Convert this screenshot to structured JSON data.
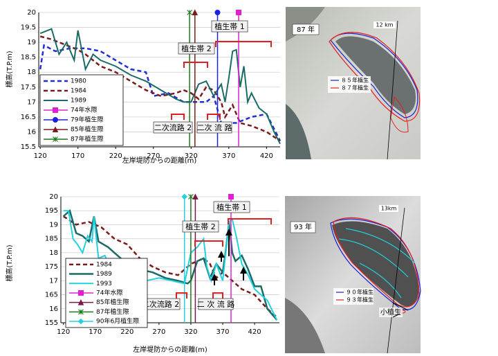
{
  "chart_data": [
    {
      "type": "line",
      "ylabel": "標高(T.P.m)",
      "xlabel": "左岸堤防からの距離(m)",
      "xlim": [
        118,
        438
      ],
      "ylim": [
        15.5,
        20
      ],
      "xticks": [
        120,
        170,
        220,
        270,
        320,
        370,
        420
      ],
      "yticks": [
        15.5,
        16,
        16.5,
        17,
        17.5,
        18,
        18.5,
        19,
        19.5,
        20
      ],
      "series": [
        {
          "name": "1980",
          "color": "#1f2fd6",
          "dash": true,
          "width": 2.5,
          "x": [
            120,
            125,
            140,
            160,
            180,
            200,
            220,
            240,
            260,
            270,
            290,
            310,
            340,
            350,
            360,
            380,
            400,
            420,
            438
          ],
          "values": [
            18.1,
            18.9,
            18.7,
            18.8,
            18.8,
            18.7,
            18.4,
            18.1,
            18.0,
            17.2,
            17.3,
            17.0,
            17.0,
            17.2,
            16.3,
            16.3,
            16.5,
            16.6,
            15.7
          ]
        },
        {
          "name": "1984",
          "color": "#7b1a1a",
          "dash": true,
          "width": 2.5,
          "x": [
            120,
            135,
            145,
            155,
            165,
            170,
            180,
            190,
            200,
            220,
            240,
            260,
            280,
            300,
            310,
            320,
            330,
            340,
            350,
            360,
            365,
            375,
            385,
            400,
            420,
            438
          ],
          "values": [
            19.2,
            19.1,
            19.0,
            18.9,
            18.8,
            18.75,
            18.6,
            18.4,
            18.2,
            18.0,
            17.7,
            17.4,
            17.2,
            17.3,
            17.4,
            17.3,
            17.1,
            17.5,
            17.4,
            17.0,
            16.5,
            16.9,
            16.3,
            16.2,
            16.0,
            15.7
          ]
        },
        {
          "name": "1989",
          "color": "#1a6b66",
          "width": 2,
          "x": [
            120,
            135,
            145,
            155,
            165,
            170,
            180,
            190,
            200,
            220,
            240,
            260,
            280,
            300,
            310,
            320,
            330,
            340,
            350,
            360,
            365,
            370,
            375,
            380,
            385,
            390,
            395,
            400,
            410,
            420,
            430,
            438
          ],
          "values": [
            19.3,
            19.45,
            18.6,
            19.0,
            18.4,
            19.4,
            18.1,
            18.6,
            18.4,
            18.2,
            17.9,
            17.7,
            17.4,
            17.1,
            17.0,
            17.0,
            17.6,
            17.7,
            17.2,
            17.6,
            17.0,
            17.8,
            18.7,
            18.75,
            17.5,
            18.2,
            17.0,
            17.3,
            16.8,
            16.6,
            16.0,
            15.6
          ]
        },
        {
          "name": "74年水際",
          "color": "#e020d0",
          "marker": "square",
          "x": [
            383,
            383
          ],
          "values": [
            15.5,
            20
          ]
        },
        {
          "name": "79年植生際",
          "color": "#1a20e0",
          "marker": "circle",
          "x": [
            355,
            355
          ],
          "values": [
            15.5,
            20
          ]
        },
        {
          "name": "85年植生際",
          "color": "#7b1a1a",
          "marker": "triangle",
          "x": [
            325,
            325
          ],
          "values": [
            15.5,
            20
          ]
        },
        {
          "name": "87年植生際",
          "color": "#1a7a1a",
          "marker": "star",
          "x": [
            318,
            318
          ],
          "values": [
            15.5,
            20
          ]
        }
      ],
      "annotations": [
        "植生帯 1",
        "植生帯 2",
        "二次流路 2",
        "二次 流 路"
      ]
    },
    {
      "type": "line",
      "ylabel": "標高(T.P.m)",
      "xlabel": "左岸堤防からの距離(m)",
      "xlim": [
        116,
        459
      ],
      "ylim": [
        15.5,
        20
      ],
      "xticks": [
        120,
        170,
        220,
        270,
        320,
        370,
        420
      ],
      "yticks": [
        {
          "value": 15.5,
          "label": "155"
        },
        16,
        {
          "value": 16.5,
          "label": "165"
        },
        17,
        {
          "value": 17.5,
          "label": "175"
        },
        18,
        {
          "value": 18.5,
          "label": "185"
        },
        19,
        {
          "value": 19.5,
          "label": "195"
        },
        20
      ],
      "series": [
        {
          "name": "1984",
          "color": "#7b1a1a",
          "dash": true,
          "width": 2.5,
          "x": [
            120,
            140,
            160,
            180,
            200,
            220,
            240,
            260,
            280,
            300,
            320,
            340,
            350,
            360,
            370,
            380,
            400,
            420,
            440,
            455
          ],
          "values": [
            19.3,
            19.0,
            19.1,
            18.9,
            18.5,
            18.3,
            17.8,
            17.5,
            17.3,
            17.2,
            17.6,
            17.8,
            17.6,
            17.1,
            17.3,
            17.1,
            16.7,
            16.5,
            16.0,
            15.7
          ]
        },
        {
          "name": "1989",
          "color": "#1a6b66",
          "width": 2.5,
          "x": [
            120,
            130,
            140,
            150,
            160,
            168,
            175,
            190,
            200,
            220,
            240,
            260,
            280,
            300,
            315,
            320,
            330,
            340,
            350,
            360,
            370,
            375,
            380,
            385,
            390,
            400,
            410,
            420,
            430,
            440,
            455
          ],
          "values": [
            19.3,
            19.5,
            18.7,
            18.6,
            18.4,
            19.3,
            18.4,
            18.2,
            18.0,
            17.6,
            17.4,
            17.3,
            17.1,
            17.0,
            16.9,
            17.0,
            17.7,
            17.8,
            17.1,
            17.6,
            17.3,
            18.1,
            19.1,
            18.0,
            17.7,
            17.9,
            17.4,
            16.8,
            16.8,
            16.0,
            15.6
          ]
        },
        {
          "name": "1993",
          "color": "#22d0e0",
          "width": 2,
          "x": [
            120,
            128,
            135,
            142,
            150,
            158,
            165,
            168,
            175,
            185,
            195,
            210,
            230,
            250,
            270,
            290,
            310,
            320,
            330,
            340,
            345,
            352,
            360,
            370,
            380,
            385,
            392,
            400,
            410,
            420,
            440,
            455
          ],
          "values": [
            19.5,
            19.5,
            18.5,
            18.3,
            18.0,
            18.6,
            18.4,
            19.3,
            17.8,
            17.9,
            17.4,
            17.5,
            17.0,
            17.0,
            17.1,
            17.0,
            16.9,
            18.0,
            18.2,
            18.5,
            17.5,
            17.0,
            17.6,
            17.0,
            19.1,
            19.2,
            18.5,
            17.6,
            17.2,
            16.7,
            16.3,
            15.6
          ]
        },
        {
          "name": "74年水際",
          "color": "#e020d0",
          "marker": "square",
          "x": [
            383,
            383
          ],
          "values": [
            15.5,
            20
          ]
        },
        {
          "name": "85年植生際",
          "color": "#7b1a4a",
          "marker": "triangle",
          "x": [
            327,
            327
          ],
          "values": [
            15.5,
            20
          ]
        },
        {
          "name": "87年植生際",
          "color": "#1a7a1a",
          "marker": "star",
          "x": [
            320,
            320
          ],
          "values": [
            15.5,
            20
          ]
        },
        {
          "name": "90年6月植生際",
          "color": "#22d0e0",
          "marker": "diamond",
          "x": [
            310,
            310
          ],
          "values": [
            15.5,
            20
          ]
        }
      ],
      "annotations": [
        "植生帯 1",
        "植生帯 2",
        "二次流路 2",
        "二 次 流 路"
      ]
    }
  ],
  "photos": [
    {
      "label": "87 年",
      "scale": "12 km",
      "legend": [
        "８５年植生",
        "８７年植生"
      ]
    },
    {
      "label": "93 年",
      "scale": "13km",
      "legend": [
        "９０年植生",
        "９３年植生"
      ],
      "note": "小植生"
    }
  ]
}
